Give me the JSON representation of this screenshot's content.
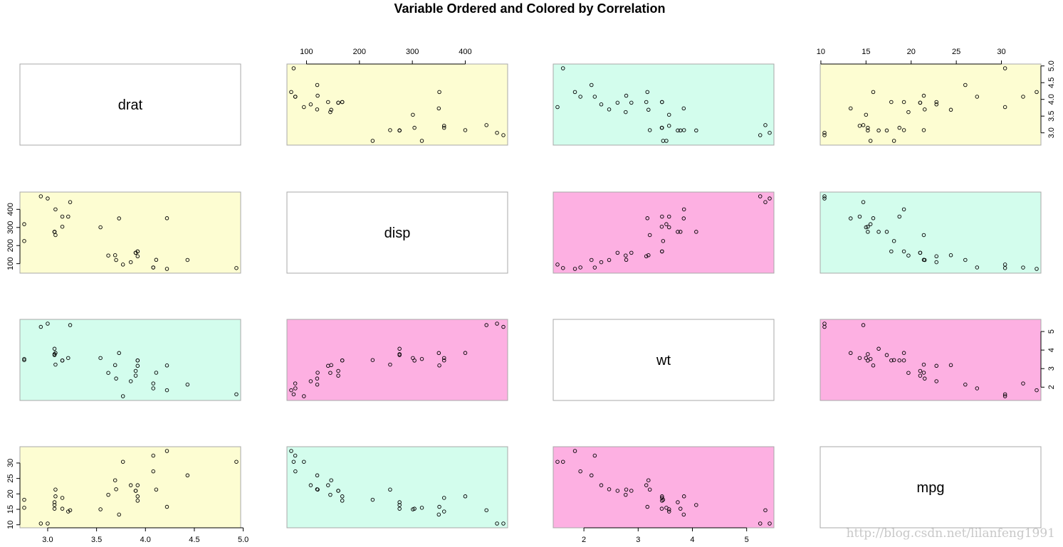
{
  "title": "Variable Ordered and Colored by Correlation",
  "watermark": "http://blog.csdn.net/lilanfeng1991",
  "colors": {
    "low": "#FDFDD2",
    "mid": "#D3FDED",
    "high": "#FDB0E2",
    "diag": "#ffffff"
  },
  "chart_data": {
    "type": "scatter",
    "title": "Variable Ordered and Colored by Correlation",
    "variables": [
      "drat",
      "disp",
      "wt",
      "mpg"
    ],
    "ranges": {
      "drat": [
        2.76,
        4.93
      ],
      "disp": [
        71.1,
        472
      ],
      "wt": [
        1.513,
        5.424
      ],
      "mpg": [
        10.4,
        33.9
      ]
    },
    "ticks": {
      "drat": [
        3.0,
        3.5,
        4.0,
        4.5,
        5.0
      ],
      "disp": [
        100,
        200,
        300,
        400
      ],
      "wt": [
        2,
        3,
        4,
        5
      ],
      "mpg": [
        10,
        15,
        20,
        25,
        30
      ]
    },
    "tick_labels": {
      "drat": [
        "3.0",
        "3.5",
        "4.0",
        "4.5",
        "5.0"
      ],
      "disp": [
        "100",
        "200",
        "300",
        "400"
      ],
      "wt": [
        "2",
        "3",
        "4",
        "5"
      ],
      "mpg": [
        "10",
        "15",
        "20",
        "25",
        "30"
      ]
    },
    "panel_colors": [
      [
        "diag",
        "low",
        "mid",
        "low"
      ],
      [
        "low",
        "diag",
        "high",
        "mid"
      ],
      [
        "mid",
        "high",
        "diag",
        "high"
      ],
      [
        "low",
        "mid",
        "high",
        "diag"
      ]
    ],
    "data": {
      "mpg": [
        21,
        21,
        22.8,
        21.4,
        18.7,
        18.1,
        14.3,
        24.4,
        22.8,
        19.2,
        17.8,
        16.4,
        17.3,
        15.2,
        10.4,
        10.4,
        14.7,
        32.4,
        30.4,
        33.9,
        21.5,
        15.5,
        15.2,
        13.3,
        19.2,
        27.3,
        26,
        30.4,
        15.8,
        19.7,
        15,
        21.4
      ],
      "disp": [
        160,
        160,
        108,
        258,
        360,
        225,
        360,
        146.7,
        140.8,
        167.6,
        167.6,
        275.8,
        275.8,
        275.8,
        472,
        460,
        440,
        78.7,
        75.7,
        71.1,
        120.1,
        318,
        304,
        350,
        400,
        79,
        120.3,
        95.1,
        351,
        145,
        301,
        121
      ],
      "drat": [
        3.9,
        3.9,
        3.85,
        3.08,
        3.15,
        2.76,
        3.21,
        3.69,
        3.92,
        3.92,
        3.92,
        3.07,
        3.07,
        3.07,
        2.93,
        3,
        3.23,
        4.08,
        4.93,
        4.22,
        3.7,
        2.76,
        3.15,
        3.73,
        3.08,
        4.08,
        4.43,
        3.77,
        4.22,
        3.62,
        3.54,
        4.11
      ],
      "wt": [
        2.62,
        2.875,
        2.32,
        3.215,
        3.44,
        3.46,
        3.57,
        3.19,
        3.15,
        3.44,
        3.44,
        4.07,
        3.73,
        3.78,
        5.25,
        5.424,
        5.345,
        2.2,
        1.615,
        1.835,
        2.465,
        3.52,
        3.435,
        3.84,
        3.845,
        1.935,
        2.14,
        1.513,
        3.17,
        2.77,
        3.57,
        2.78
      ]
    }
  }
}
